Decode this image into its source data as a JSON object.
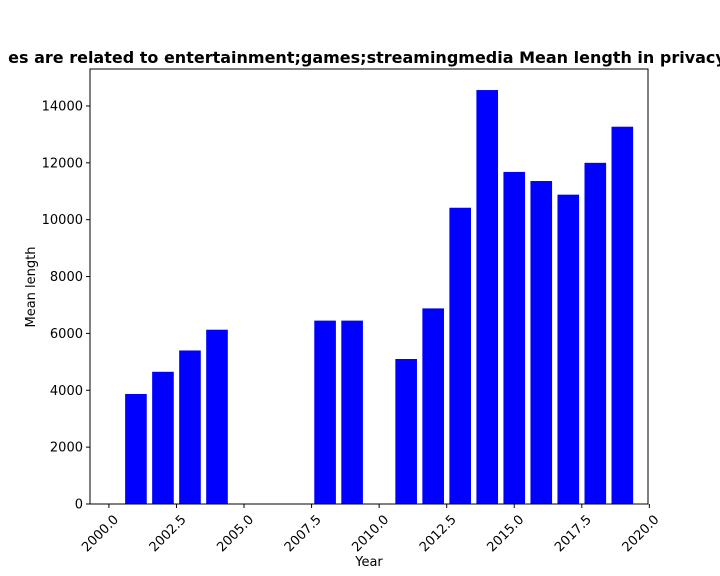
{
  "chart_data": {
    "type": "bar",
    "title": "es are related to entertainment;games;streamingmedia Mean length in privacy",
    "xlabel": "Year",
    "ylabel": "Mean length",
    "x": [
      2001,
      2002,
      2003,
      2004,
      2008,
      2009,
      2011,
      2012,
      2013,
      2014,
      2015,
      2016,
      2017,
      2018,
      2019
    ],
    "values": [
      3870,
      4650,
      5400,
      6130,
      6450,
      6450,
      5100,
      6880,
      10420,
      14560,
      11680,
      11360,
      10880,
      12000,
      13270
    ],
    "xlim": [
      1999.3,
      2019.95
    ],
    "ylim": [
      0,
      15300
    ],
    "xticks": [
      2000.0,
      2002.5,
      2005.0,
      2007.5,
      2010.0,
      2012.5,
      2015.0,
      2017.5,
      2020.0
    ],
    "xtick_labels": [
      "2000.0",
      "2002.5",
      "2005.0",
      "2007.5",
      "2010.0",
      "2012.5",
      "2015.0",
      "2017.5",
      "2020.0"
    ],
    "yticks": [
      0,
      2000,
      4000,
      6000,
      8000,
      10000,
      12000,
      14000
    ],
    "ytick_labels": [
      "0",
      "2000",
      "4000",
      "6000",
      "8000",
      "10000",
      "12000",
      "14000"
    ],
    "bar_color": "#0000ff",
    "grid": false,
    "legend": "none"
  }
}
